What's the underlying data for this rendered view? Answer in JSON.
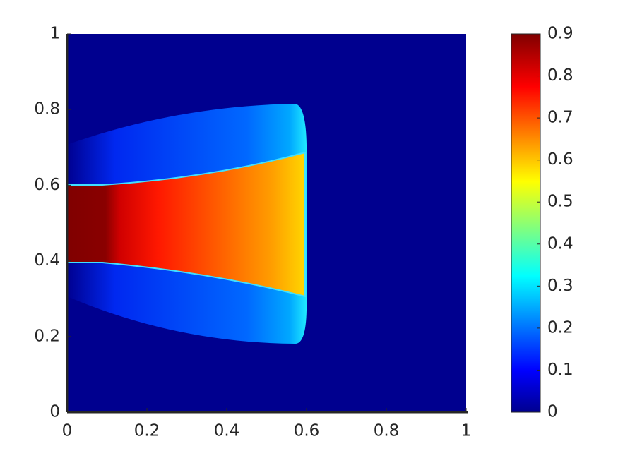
{
  "chart_data": {
    "type": "heatmap",
    "xlim": [
      0,
      1
    ],
    "xticks": [
      0,
      0.2,
      0.4,
      0.6,
      0.8,
      1
    ],
    "ylim": [
      0,
      1
    ],
    "yticks": [
      0,
      0.2,
      0.4,
      0.6,
      0.8,
      1
    ],
    "colorbar": {
      "lim": [
        0,
        0.9
      ],
      "ticks": [
        0,
        0.1,
        0.2,
        0.3,
        0.4,
        0.5,
        0.6,
        0.7,
        0.8,
        0.9
      ],
      "colormap": "jet"
    }
  }
}
